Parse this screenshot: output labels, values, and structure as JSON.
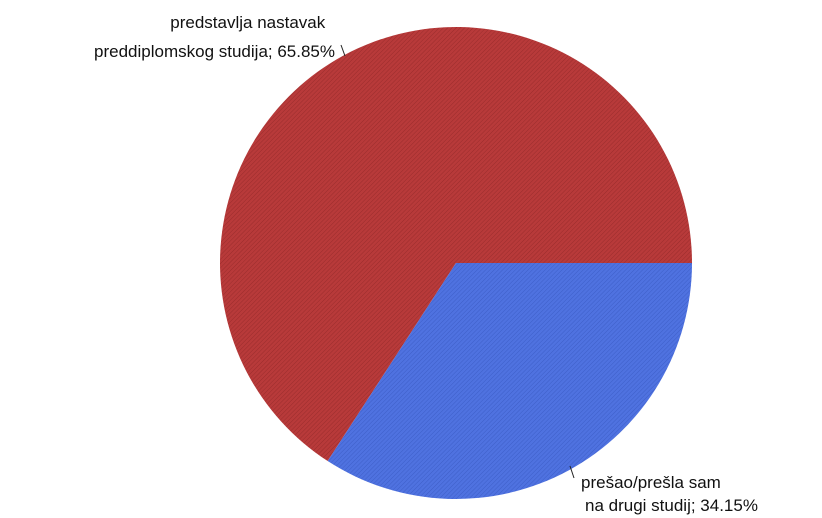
{
  "chart_data": {
    "type": "pie",
    "title": "",
    "slices": [
      {
        "label_lines": [
          "predstavlja nastavak",
          "preddiplomskog studija; 65.85%"
        ],
        "value": 65.85,
        "color": "#b83a3a"
      },
      {
        "label_lines": [
          "prešao/prešla sam",
          "na drugi studij; 34.15%"
        ],
        "value": 34.15,
        "color": "#4f72e0"
      }
    ],
    "legend": "none"
  }
}
